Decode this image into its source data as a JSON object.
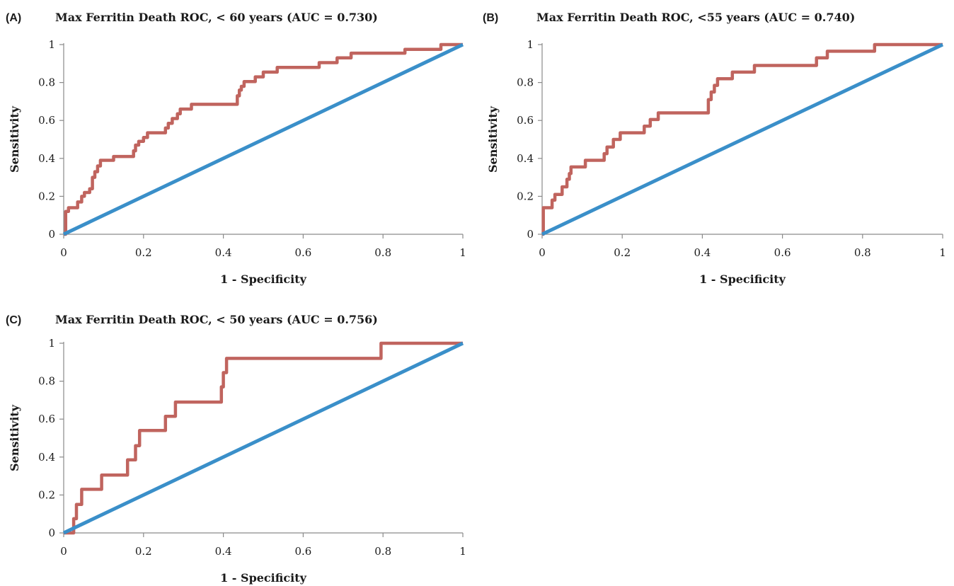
{
  "chart_data": [
    {
      "type": "line",
      "panel_label": "(A)",
      "title": "Max Ferritin Death ROC, < 60 years (AUC = 0.730)",
      "xlabel": "1 - Specificity",
      "ylabel": "Sensitivity",
      "xlim": [
        0,
        1
      ],
      "ylim": [
        0,
        1
      ],
      "x_ticks": [
        "0",
        "0.2",
        "0.4",
        "0.6",
        "0.8",
        "1"
      ],
      "y_ticks": [
        "0",
        "0.2",
        "0.4",
        "0.6",
        "0.8",
        "1"
      ],
      "grid": false,
      "legend": "none",
      "series": [
        {
          "color": "#c0645e",
          "points": [
            [
              0,
              0
            ],
            [
              0.005,
              0
            ],
            [
              0.005,
              0.12
            ],
            [
              0.012,
              0.12
            ],
            [
              0.012,
              0.14
            ],
            [
              0.035,
              0.14
            ],
            [
              0.035,
              0.17
            ],
            [
              0.045,
              0.17
            ],
            [
              0.045,
              0.2
            ],
            [
              0.052,
              0.2
            ],
            [
              0.052,
              0.22
            ],
            [
              0.065,
              0.22
            ],
            [
              0.065,
              0.24
            ],
            [
              0.072,
              0.24
            ],
            [
              0.072,
              0.3
            ],
            [
              0.078,
              0.3
            ],
            [
              0.078,
              0.33
            ],
            [
              0.085,
              0.33
            ],
            [
              0.085,
              0.36
            ],
            [
              0.092,
              0.36
            ],
            [
              0.092,
              0.39
            ],
            [
              0.125,
              0.39
            ],
            [
              0.125,
              0.41
            ],
            [
              0.175,
              0.41
            ],
            [
              0.175,
              0.44
            ],
            [
              0.18,
              0.44
            ],
            [
              0.18,
              0.47
            ],
            [
              0.188,
              0.47
            ],
            [
              0.188,
              0.49
            ],
            [
              0.2,
              0.49
            ],
            [
              0.2,
              0.51
            ],
            [
              0.21,
              0.51
            ],
            [
              0.21,
              0.535
            ],
            [
              0.255,
              0.535
            ],
            [
              0.255,
              0.56
            ],
            [
              0.262,
              0.56
            ],
            [
              0.262,
              0.585
            ],
            [
              0.272,
              0.585
            ],
            [
              0.272,
              0.61
            ],
            [
              0.285,
              0.61
            ],
            [
              0.285,
              0.635
            ],
            [
              0.292,
              0.635
            ],
            [
              0.292,
              0.66
            ],
            [
              0.32,
              0.66
            ],
            [
              0.32,
              0.685
            ],
            [
              0.435,
              0.685
            ],
            [
              0.435,
              0.73
            ],
            [
              0.44,
              0.73
            ],
            [
              0.44,
              0.76
            ],
            [
              0.445,
              0.76
            ],
            [
              0.445,
              0.78
            ],
            [
              0.452,
              0.78
            ],
            [
              0.452,
              0.805
            ],
            [
              0.48,
              0.805
            ],
            [
              0.48,
              0.83
            ],
            [
              0.5,
              0.83
            ],
            [
              0.5,
              0.855
            ],
            [
              0.535,
              0.855
            ],
            [
              0.535,
              0.88
            ],
            [
              0.64,
              0.88
            ],
            [
              0.64,
              0.905
            ],
            [
              0.685,
              0.905
            ],
            [
              0.685,
              0.93
            ],
            [
              0.72,
              0.93
            ],
            [
              0.72,
              0.955
            ],
            [
              0.855,
              0.955
            ],
            [
              0.855,
              0.975
            ],
            [
              0.945,
              0.975
            ],
            [
              0.945,
              1
            ],
            [
              1,
              1
            ]
          ]
        },
        {
          "color": "#3a8fc9",
          "points": [
            [
              0,
              0
            ],
            [
              1,
              1
            ]
          ]
        }
      ]
    },
    {
      "type": "line",
      "panel_label": "(B)",
      "title": "Max Ferritin Death ROC, <55 years (AUC = 0.740)",
      "xlabel": "1 - Specificity",
      "ylabel": "Sensitivity",
      "xlim": [
        0,
        1
      ],
      "ylim": [
        0,
        1
      ],
      "x_ticks": [
        "0",
        "0.2",
        "0.4",
        "0.6",
        "0.8",
        "1"
      ],
      "y_ticks": [
        "0",
        "0.2",
        "0.4",
        "0.6",
        "0.8",
        "1"
      ],
      "grid": false,
      "legend": "none",
      "series": [
        {
          "color": "#c0645e",
          "points": [
            [
              0,
              0
            ],
            [
              0.003,
              0
            ],
            [
              0.003,
              0.14
            ],
            [
              0.025,
              0.14
            ],
            [
              0.025,
              0.18
            ],
            [
              0.032,
              0.18
            ],
            [
              0.032,
              0.21
            ],
            [
              0.05,
              0.21
            ],
            [
              0.05,
              0.25
            ],
            [
              0.062,
              0.25
            ],
            [
              0.062,
              0.29
            ],
            [
              0.068,
              0.29
            ],
            [
              0.068,
              0.32
            ],
            [
              0.072,
              0.32
            ],
            [
              0.072,
              0.355
            ],
            [
              0.108,
              0.355
            ],
            [
              0.108,
              0.39
            ],
            [
              0.155,
              0.39
            ],
            [
              0.155,
              0.425
            ],
            [
              0.162,
              0.425
            ],
            [
              0.162,
              0.46
            ],
            [
              0.178,
              0.46
            ],
            [
              0.178,
              0.5
            ],
            [
              0.195,
              0.5
            ],
            [
              0.195,
              0.535
            ],
            [
              0.255,
              0.535
            ],
            [
              0.255,
              0.57
            ],
            [
              0.27,
              0.57
            ],
            [
              0.27,
              0.605
            ],
            [
              0.29,
              0.605
            ],
            [
              0.29,
              0.64
            ],
            [
              0.415,
              0.64
            ],
            [
              0.415,
              0.71
            ],
            [
              0.422,
              0.71
            ],
            [
              0.422,
              0.75
            ],
            [
              0.43,
              0.75
            ],
            [
              0.43,
              0.785
            ],
            [
              0.438,
              0.785
            ],
            [
              0.438,
              0.82
            ],
            [
              0.475,
              0.82
            ],
            [
              0.475,
              0.855
            ],
            [
              0.53,
              0.855
            ],
            [
              0.53,
              0.89
            ],
            [
              0.685,
              0.89
            ],
            [
              0.685,
              0.93
            ],
            [
              0.712,
              0.93
            ],
            [
              0.712,
              0.965
            ],
            [
              0.83,
              0.965
            ],
            [
              0.83,
              1
            ],
            [
              1,
              1
            ]
          ]
        },
        {
          "color": "#3a8fc9",
          "points": [
            [
              0,
              0
            ],
            [
              1,
              1
            ]
          ]
        }
      ]
    },
    {
      "type": "line",
      "panel_label": "(C)",
      "title": "Max Ferritin Death ROC, < 50 years (AUC = 0.756)",
      "xlabel": "1 - Specificity",
      "ylabel": "Sensitivity",
      "xlim": [
        0,
        1
      ],
      "ylim": [
        0,
        1
      ],
      "x_ticks": [
        "0",
        "0.2",
        "0.4",
        "0.6",
        "0.8",
        "1"
      ],
      "y_ticks": [
        "0",
        "0.2",
        "0.4",
        "0.6",
        "0.8",
        "1"
      ],
      "grid": false,
      "legend": "none",
      "series": [
        {
          "color": "#c0645e",
          "points": [
            [
              0,
              0
            ],
            [
              0.025,
              0
            ],
            [
              0.025,
              0.075
            ],
            [
              0.032,
              0.075
            ],
            [
              0.032,
              0.15
            ],
            [
              0.045,
              0.15
            ],
            [
              0.045,
              0.23
            ],
            [
              0.095,
              0.23
            ],
            [
              0.095,
              0.305
            ],
            [
              0.16,
              0.305
            ],
            [
              0.16,
              0.385
            ],
            [
              0.18,
              0.385
            ],
            [
              0.18,
              0.46
            ],
            [
              0.19,
              0.46
            ],
            [
              0.19,
              0.54
            ],
            [
              0.255,
              0.54
            ],
            [
              0.255,
              0.615
            ],
            [
              0.28,
              0.615
            ],
            [
              0.28,
              0.69
            ],
            [
              0.395,
              0.69
            ],
            [
              0.395,
              0.77
            ],
            [
              0.4,
              0.77
            ],
            [
              0.4,
              0.845
            ],
            [
              0.408,
              0.845
            ],
            [
              0.408,
              0.92
            ],
            [
              0.795,
              0.92
            ],
            [
              0.795,
              1
            ],
            [
              1,
              1
            ]
          ]
        },
        {
          "color": "#3a8fc9",
          "points": [
            [
              0,
              0
            ],
            [
              1,
              1
            ]
          ]
        }
      ]
    }
  ]
}
